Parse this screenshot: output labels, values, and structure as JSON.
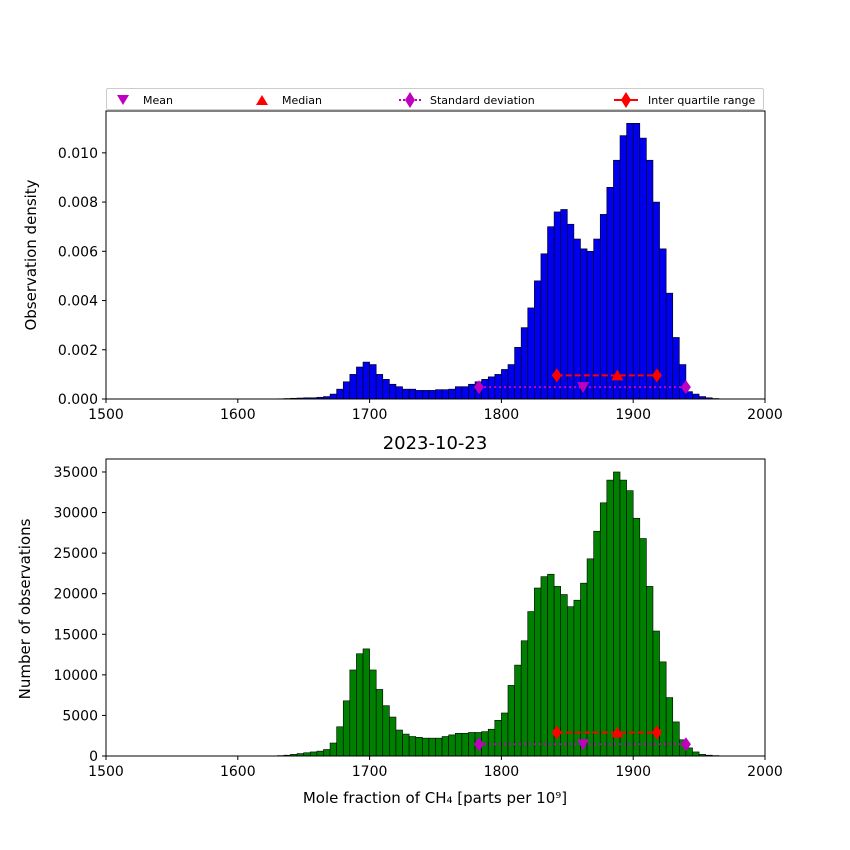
{
  "legend": {
    "mean": "Mean",
    "median": "Median",
    "std": "Standard deviation",
    "iqr": "Inter quartile range"
  },
  "colors": {
    "top_bars": "#0000ee",
    "bottom_bars": "#008000",
    "mean_marker": "#bf00bf",
    "median_marker": "#ff0000",
    "std_marker": "#bf00bf",
    "iqr_marker": "#ff0000"
  },
  "chart_data": [
    {
      "type": "bar",
      "panel": "top",
      "title": "",
      "xlabel": "",
      "ylabel": "Observation density",
      "xlim": [
        1500,
        2000
      ],
      "ylim": [
        0,
        0.0117
      ],
      "xticks": [
        1500,
        1600,
        1700,
        1800,
        1900,
        2000
      ],
      "yticks": [
        0.0,
        0.002,
        0.004,
        0.006,
        0.008,
        0.01
      ],
      "ytick_labels": [
        "0.000",
        "0.002",
        "0.004",
        "0.006",
        "0.008",
        "0.010"
      ],
      "bin_width": 5,
      "bin_start": 1630,
      "values": [
        1e-05,
        2e-05,
        3e-05,
        4e-05,
        5e-05,
        5e-05,
        7e-05,
        0.0001,
        0.0002,
        0.0004,
        0.0007,
        0.001,
        0.0013,
        0.0015,
        0.0014,
        0.001,
        0.0008,
        0.0006,
        0.0005,
        0.0004,
        0.0004,
        0.00035,
        0.00035,
        0.00035,
        0.00038,
        0.00038,
        0.0004,
        0.0005,
        0.0005,
        0.0006,
        0.0007,
        0.0008,
        0.0009,
        0.001,
        0.0012,
        0.0014,
        0.0021,
        0.0029,
        0.0037,
        0.0048,
        0.0059,
        0.007,
        0.0076,
        0.0077,
        0.0071,
        0.0065,
        0.0061,
        0.006,
        0.0065,
        0.0075,
        0.0086,
        0.0097,
        0.0107,
        0.0112,
        0.0112,
        0.0106,
        0.0097,
        0.008,
        0.0061,
        0.0043,
        0.0025,
        0.0014,
        0.0003,
        0.0002,
        0.0001,
        5e-05,
        2e-05
      ],
      "stats": {
        "y": 0.00048,
        "iqr_y": 0.00096,
        "mean": 1862,
        "median": 1888,
        "std_low": 1783,
        "std_high": 1940,
        "iqr_low": 1842,
        "iqr_high": 1918
      }
    },
    {
      "type": "bar",
      "panel": "bottom",
      "title": "2023-10-23",
      "xlabel": "Mole fraction of CH₄ [parts per 10⁹]",
      "ylabel": "Number of observations",
      "xlim": [
        1500,
        2000
      ],
      "ylim": [
        0,
        36600
      ],
      "xticks": [
        1500,
        1600,
        1700,
        1800,
        1900,
        2000
      ],
      "yticks": [
        0,
        5000,
        10000,
        15000,
        20000,
        25000,
        30000,
        35000
      ],
      "ytick_labels": [
        "0",
        "5000",
        "10000",
        "15000",
        "20000",
        "25000",
        "30000",
        "35000"
      ],
      "bin_width": 5,
      "bin_start": 1630,
      "values": [
        50,
        100,
        200,
        300,
        400,
        500,
        600,
        800,
        1600,
        3600,
        6800,
        10600,
        12600,
        13200,
        10600,
        8200,
        6200,
        4800,
        3200,
        2700,
        2400,
        2300,
        2200,
        2200,
        2200,
        2400,
        2600,
        2800,
        2800,
        2900,
        2900,
        3000,
        3300,
        4400,
        5300,
        8700,
        11200,
        14200,
        17800,
        20700,
        22100,
        22400,
        20900,
        19900,
        18400,
        19200,
        21300,
        24300,
        27700,
        31200,
        34000,
        35000,
        34000,
        32700,
        29300,
        26800,
        20900,
        15400,
        11600,
        7200,
        4200,
        2000,
        1000,
        500,
        200,
        100,
        50
      ],
      "stats": {
        "y": 1450,
        "iqr_y": 2900,
        "mean": 1862,
        "median": 1888,
        "std_low": 1783,
        "std_high": 1940,
        "iqr_low": 1842,
        "iqr_high": 1918
      }
    }
  ]
}
